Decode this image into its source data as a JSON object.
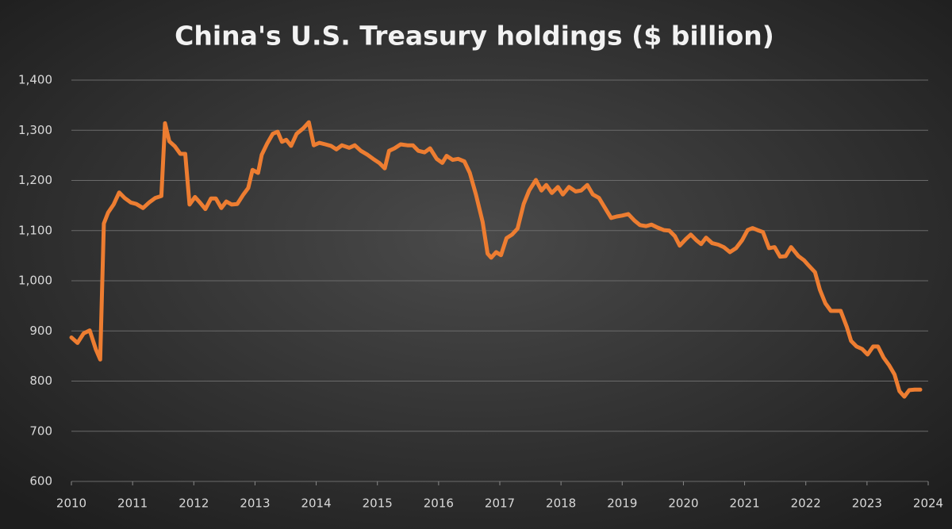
{
  "chart_data": {
    "type": "line",
    "title": "China's U.S. Treasury holdings ($ billion)",
    "xlim": [
      2010,
      2024
    ],
    "xticks": [
      2010,
      2011,
      2012,
      2013,
      2014,
      2015,
      2016,
      2017,
      2018,
      2019,
      2020,
      2021,
      2022,
      2023,
      2024
    ],
    "ylim": [
      600,
      1400
    ],
    "yticks": [
      600,
      700,
      800,
      900,
      {
        "value": 1000,
        "label": "1,000"
      },
      {
        "value": 1100,
        "label": "1,100"
      },
      {
        "value": 1200,
        "label": "1,200"
      },
      {
        "value": 1300,
        "label": "1,300"
      },
      {
        "value": 1400,
        "label": "1,400"
      }
    ],
    "grid": true,
    "series": [
      {
        "color": "#ed7d31",
        "x": [
          2010.0,
          2010.1,
          2010.2,
          2010.3,
          2010.4,
          2010.47,
          2010.53,
          2010.6,
          2010.69,
          2010.78,
          2010.87,
          2010.97,
          2011.06,
          2011.17,
          2011.27,
          2011.37,
          2011.47,
          2011.53,
          2011.6,
          2011.69,
          2011.78,
          2011.86,
          2011.93,
          2012.02,
          2012.1,
          2012.19,
          2012.28,
          2012.36,
          2012.45,
          2012.53,
          2012.62,
          2012.71,
          2012.81,
          2012.89,
          2012.96,
          2013.05,
          2013.11,
          2013.2,
          2013.29,
          2013.37,
          2013.44,
          2013.51,
          2013.59,
          2013.68,
          2013.79,
          2013.88,
          2013.96,
          2014.05,
          2014.15,
          2014.24,
          2014.33,
          2014.42,
          2014.54,
          2014.63,
          2014.73,
          2014.84,
          2014.93,
          2015.03,
          2015.12,
          2015.19,
          2015.28,
          2015.38,
          2015.49,
          2015.58,
          2015.67,
          2015.77,
          2015.86,
          2015.97,
          2016.06,
          2016.13,
          2016.23,
          2016.32,
          2016.42,
          2016.51,
          2016.61,
          2016.72,
          2016.8,
          2016.86,
          2016.94,
          2017.02,
          2017.11,
          2017.2,
          2017.29,
          2017.39,
          2017.48,
          2017.59,
          2017.68,
          2017.76,
          2017.85,
          2017.95,
          2018.03,
          2018.13,
          2018.24,
          2018.33,
          2018.43,
          2018.52,
          2018.62,
          2018.72,
          2018.82,
          2018.91,
          2019.0,
          2019.1,
          2019.2,
          2019.29,
          2019.39,
          2019.48,
          2019.58,
          2019.68,
          2019.77,
          2019.86,
          2019.94,
          2020.04,
          2020.12,
          2020.21,
          2020.29,
          2020.37,
          2020.47,
          2020.57,
          2020.66,
          2020.76,
          2020.86,
          2020.96,
          2021.05,
          2021.13,
          2021.21,
          2021.3,
          2021.4,
          2021.49,
          2021.58,
          2021.67,
          2021.76,
          2021.88,
          2021.97,
          2022.05,
          2022.15,
          2022.23,
          2022.32,
          2022.41,
          2022.49,
          2022.57,
          2022.67,
          2022.74,
          2022.83,
          2022.92,
          2023.01,
          2023.1,
          2023.18,
          2023.27,
          2023.36,
          2023.45,
          2023.53,
          2023.61,
          2023.69,
          2023.78,
          2023.87
        ],
        "values": [
          887,
          876,
          895,
          901,
          863,
          843,
          1114,
          1136,
          1152,
          1176,
          1165,
          1156,
          1153,
          1145,
          1156,
          1165,
          1169,
          1314,
          1278,
          1268,
          1253,
          1253,
          1152,
          1167,
          1156,
          1143,
          1164,
          1164,
          1145,
          1158,
          1152,
          1153,
          1172,
          1185,
          1221,
          1215,
          1251,
          1274,
          1293,
          1297,
          1277,
          1281,
          1269,
          1293,
          1304,
          1316,
          1270,
          1275,
          1272,
          1269,
          1262,
          1270,
          1265,
          1270,
          1259,
          1251,
          1243,
          1235,
          1224,
          1259,
          1264,
          1272,
          1270,
          1270,
          1259,
          1256,
          1264,
          1243,
          1235,
          1249,
          1241,
          1243,
          1238,
          1215,
          1172,
          1117,
          1054,
          1046,
          1057,
          1051,
          1085,
          1092,
          1104,
          1153,
          1180,
          1201,
          1180,
          1191,
          1175,
          1187,
          1172,
          1187,
          1178,
          1180,
          1191,
          1172,
          1165,
          1145,
          1125,
          1128,
          1130,
          1133,
          1120,
          1111,
          1109,
          1112,
          1106,
          1101,
          1100,
          1089,
          1070,
          1083,
          1092,
          1081,
          1073,
          1086,
          1075,
          1072,
          1067,
          1057,
          1065,
          1081,
          1101,
          1105,
          1101,
          1097,
          1065,
          1067,
          1048,
          1049,
          1067,
          1049,
          1041,
          1030,
          1017,
          982,
          955,
          940,
          940,
          940,
          908,
          880,
          869,
          864,
          853,
          869,
          869,
          847,
          832,
          813,
          780,
          769,
          782,
          783,
          783
        ]
      }
    ]
  }
}
